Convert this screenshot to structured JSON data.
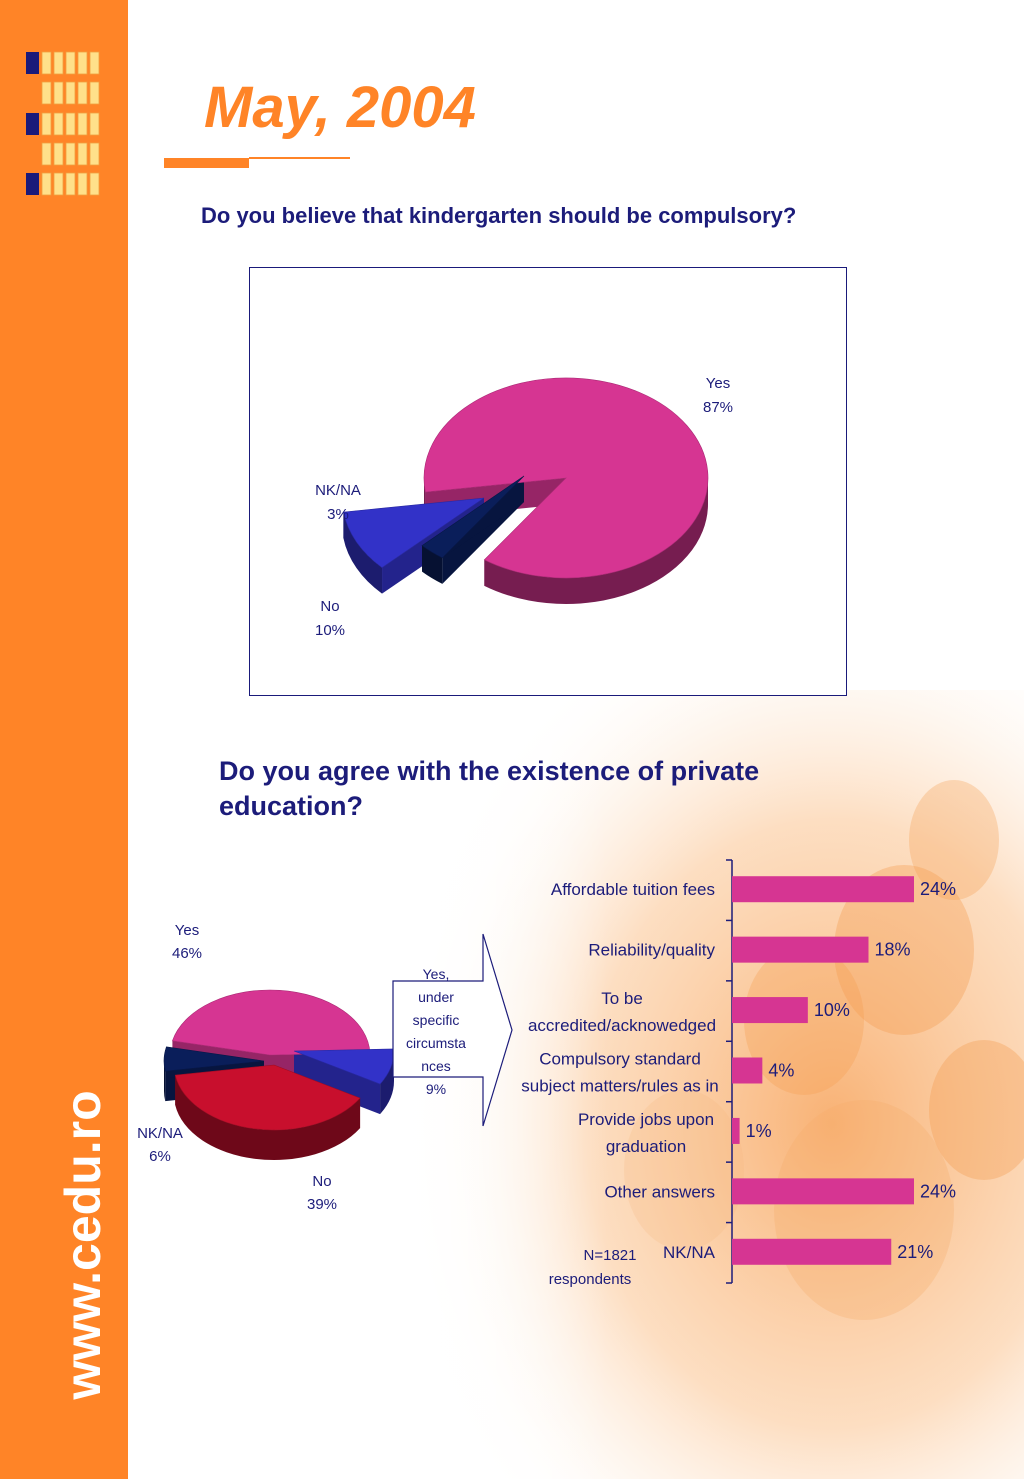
{
  "page": {
    "title": "May, 2004",
    "website": "www.cedu.ro"
  },
  "colors": {
    "orange": "#FF8427",
    "navy": "#1c1c7a",
    "magenta": "#d63592",
    "blue": "#3232c8",
    "dark_navy": "#0a1e5a",
    "red": "#c80f2d"
  },
  "chart_data": [
    {
      "type": "pie",
      "title": "Do you believe that kindergarten should be compulsory?",
      "slices": [
        {
          "label": "Yes",
          "value": 87,
          "display": "87%",
          "color": "#d63592"
        },
        {
          "label": "NK/NA",
          "value": 3,
          "display": "3%",
          "color": "#0a1e5a"
        },
        {
          "label": "No",
          "value": 10,
          "display": "10%",
          "color": "#3232c8"
        }
      ]
    },
    {
      "type": "pie",
      "title": "Do you agree with the existence of private education?",
      "slices": [
        {
          "label": "Yes",
          "value": 46,
          "display": "46%",
          "color": "#d63592"
        },
        {
          "label": "Yes, under specific circumstances",
          "label_lines": [
            "Yes,",
            "under",
            "specific",
            "circumsta",
            "nces"
          ],
          "value": 9,
          "display": "9%",
          "color": "#3232c8"
        },
        {
          "label": "No",
          "value": 39,
          "display": "39%",
          "color": "#c80f2d"
        },
        {
          "label": "NK/NA",
          "value": 6,
          "display": "6%",
          "color": "#0a1e5a"
        }
      ]
    },
    {
      "type": "bar",
      "orientation": "horizontal",
      "categories": [
        [
          "Affordable tuition fees"
        ],
        [
          "Reliability/quality"
        ],
        [
          "To be",
          "accredited/acknowedged"
        ],
        [
          "Compulsory standard",
          "subject matters/rules as in"
        ],
        [
          "Provide jobs upon",
          "graduation"
        ],
        [
          "Other answers"
        ],
        [
          "NK/NA"
        ]
      ],
      "values": [
        24,
        18,
        10,
        4,
        1,
        24,
        21
      ],
      "value_labels": [
        "24%",
        "18%",
        "10%",
        "4%",
        "1%",
        "24%",
        "21%"
      ],
      "color": "#d63592",
      "xlim": [
        0,
        30
      ],
      "note": [
        "N=1821",
        "respondents"
      ]
    }
  ]
}
